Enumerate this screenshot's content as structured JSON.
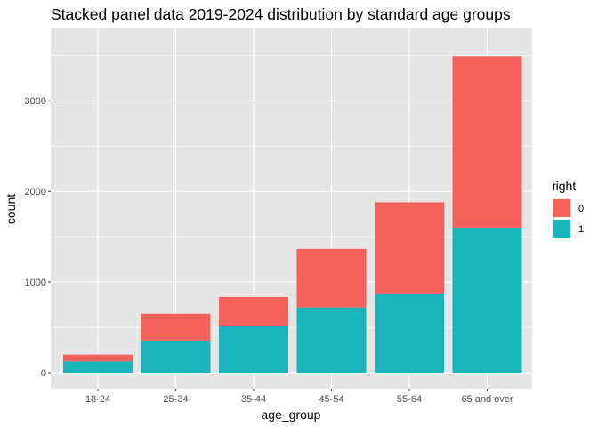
{
  "chart_data": {
    "type": "bar",
    "stacked": true,
    "title": "Stacked panel data 2019-2024 distribution by standard age groups",
    "xlabel": "age_group",
    "ylabel": "count",
    "categories": [
      "18-24",
      "25-34",
      "35-44",
      "45-54",
      "55-64",
      "65 and over"
    ],
    "series": [
      {
        "name": "1",
        "color": "#19b5ba",
        "values": [
          125,
          355,
          520,
          720,
          875,
          1600
        ]
      },
      {
        "name": "0",
        "color": "#f5625e",
        "values": [
          75,
          295,
          315,
          645,
          1005,
          1890
        ]
      }
    ],
    "ylim": [
      0,
      3650
    ],
    "yticks": [
      0,
      1000,
      2000,
      3000
    ],
    "ytick_labels": [
      "0",
      "1000",
      "2000",
      "3000"
    ],
    "legend": {
      "title": "right",
      "entries": [
        "0",
        "1"
      ],
      "position": "right"
    },
    "grid": true,
    "panel_background": "#e5e5e5",
    "grid_color": "#ffffff"
  }
}
